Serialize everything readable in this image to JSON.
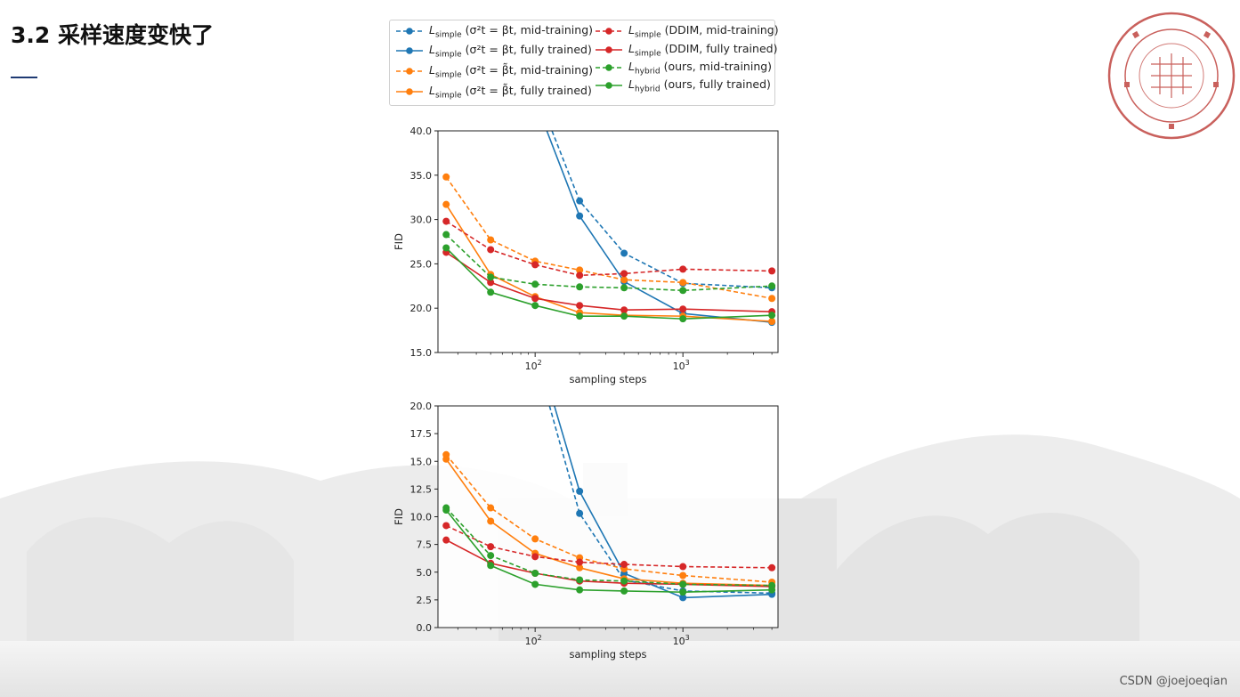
{
  "slide": {
    "title": "3.2 采样速度变快了",
    "credit": "CSDN @joejoeqian"
  },
  "seal": {
    "icon": "university-seal-icon",
    "color": "#b5403d"
  },
  "legend": {
    "items": [
      {
        "base": "L",
        "sub": "simple",
        "rest": " (σ²t = βt, mid-training)",
        "color": "#1f77b4",
        "dashed": true
      },
      {
        "base": "L",
        "sub": "simple",
        "rest": " (σ²t = βt, fully trained)",
        "color": "#1f77b4",
        "dashed": false
      },
      {
        "base": "L",
        "sub": "simple",
        "rest": " (σ²t = β̃t, mid-training)",
        "color": "#ff7f0e",
        "dashed": true
      },
      {
        "base": "L",
        "sub": "simple",
        "rest": " (σ²t = β̃t, fully trained)",
        "color": "#ff7f0e",
        "dashed": false
      },
      {
        "base": "L",
        "sub": "simple",
        "rest": " (DDIM, mid-training)",
        "color": "#d62728",
        "dashed": true
      },
      {
        "base": "L",
        "sub": "simple",
        "rest": " (DDIM, fully trained)",
        "color": "#d62728",
        "dashed": false
      },
      {
        "base": "L",
        "sub": "hybrid",
        "rest": " (ours, mid-training)",
        "color": "#2ca02c",
        "dashed": true
      },
      {
        "base": "L",
        "sub": "hybrid",
        "rest": " (ours, fully trained)",
        "color": "#2ca02c",
        "dashed": false
      }
    ]
  },
  "chart_data": [
    {
      "type": "line",
      "xscale": "log",
      "xlabel": "sampling steps",
      "ylabel": "FID",
      "xlim": [
        22,
        4400
      ],
      "ylim": [
        15.0,
        40.0
      ],
      "yticks": [
        "15.0",
        "20.0",
        "25.0",
        "30.0",
        "35.0",
        "40.0"
      ],
      "xticks": [
        {
          "base": "10",
          "exp": "2",
          "value": 100
        },
        {
          "base": "10",
          "exp": "3",
          "value": 1000
        }
      ],
      "x": [
        25,
        50,
        100,
        200,
        400,
        1000,
        4000
      ],
      "series": [
        {
          "legend": 0,
          "y": [
            null,
            null,
            null,
            32.1,
            26.2,
            22.8,
            22.3
          ]
        },
        {
          "legend": 1,
          "y": [
            null,
            null,
            null,
            30.4,
            23.0,
            19.4,
            18.4
          ]
        },
        {
          "legend": 2,
          "y": [
            34.8,
            27.7,
            25.3,
            24.3,
            23.2,
            22.9,
            21.1
          ]
        },
        {
          "legend": 3,
          "y": [
            31.7,
            23.8,
            21.3,
            19.5,
            19.2,
            19.1,
            18.5
          ]
        },
        {
          "legend": 4,
          "y": [
            29.8,
            26.6,
            24.9,
            23.7,
            23.9,
            24.4,
            24.2
          ]
        },
        {
          "legend": 5,
          "y": [
            26.3,
            22.9,
            21.1,
            20.3,
            19.8,
            19.9,
            19.6
          ]
        },
        {
          "legend": 6,
          "y": [
            28.3,
            23.5,
            22.7,
            22.4,
            22.3,
            22.0,
            22.5
          ]
        },
        {
          "legend": 7,
          "y": [
            26.8,
            21.8,
            20.3,
            19.1,
            19.1,
            18.8,
            19.2
          ]
        }
      ],
      "clipped_segments": [
        {
          "legend": 0,
          "from": [
            130,
            40.0
          ],
          "to": [
            200,
            32.1
          ]
        },
        {
          "legend": 1,
          "from": [
            120,
            40.0
          ],
          "to": [
            200,
            30.4
          ]
        }
      ]
    },
    {
      "type": "line",
      "xscale": "log",
      "xlabel": "sampling steps",
      "ylabel": "FID",
      "xlim": [
        22,
        4400
      ],
      "ylim": [
        0.0,
        20.0
      ],
      "yticks": [
        "0.0",
        "2.5",
        "5.0",
        "7.5",
        "10.0",
        "12.5",
        "15.0",
        "17.5",
        "20.0"
      ],
      "xticks": [
        {
          "base": "10",
          "exp": "2",
          "value": 100
        },
        {
          "base": "10",
          "exp": "3",
          "value": 1000
        }
      ],
      "x": [
        25,
        50,
        100,
        200,
        400,
        1000,
        4000
      ],
      "series": [
        {
          "legend": 0,
          "y": [
            null,
            null,
            null,
            10.3,
            4.3,
            3.3,
            3.1
          ]
        },
        {
          "legend": 1,
          "y": [
            null,
            null,
            null,
            12.3,
            4.9,
            2.7,
            3.0
          ]
        },
        {
          "legend": 2,
          "y": [
            15.6,
            10.8,
            8.0,
            6.3,
            5.3,
            4.7,
            4.1
          ]
        },
        {
          "legend": 3,
          "y": [
            15.2,
            9.6,
            6.7,
            5.4,
            4.4,
            4.0,
            3.8
          ]
        },
        {
          "legend": 4,
          "y": [
            9.2,
            7.3,
            6.4,
            5.9,
            5.7,
            5.5,
            5.4
          ]
        },
        {
          "legend": 5,
          "y": [
            7.9,
            5.8,
            4.9,
            4.2,
            4.0,
            3.9,
            3.7
          ]
        },
        {
          "legend": 6,
          "y": [
            10.8,
            6.5,
            4.9,
            4.3,
            4.2,
            3.9,
            3.8
          ]
        },
        {
          "legend": 7,
          "y": [
            10.6,
            5.6,
            3.9,
            3.4,
            3.3,
            3.2,
            3.4
          ]
        }
      ],
      "clipped_segments": [
        {
          "legend": 0,
          "from": [
            125,
            20.0
          ],
          "to": [
            200,
            10.3
          ]
        },
        {
          "legend": 1,
          "from": [
            135,
            20.0
          ],
          "to": [
            200,
            12.3
          ]
        }
      ]
    }
  ]
}
